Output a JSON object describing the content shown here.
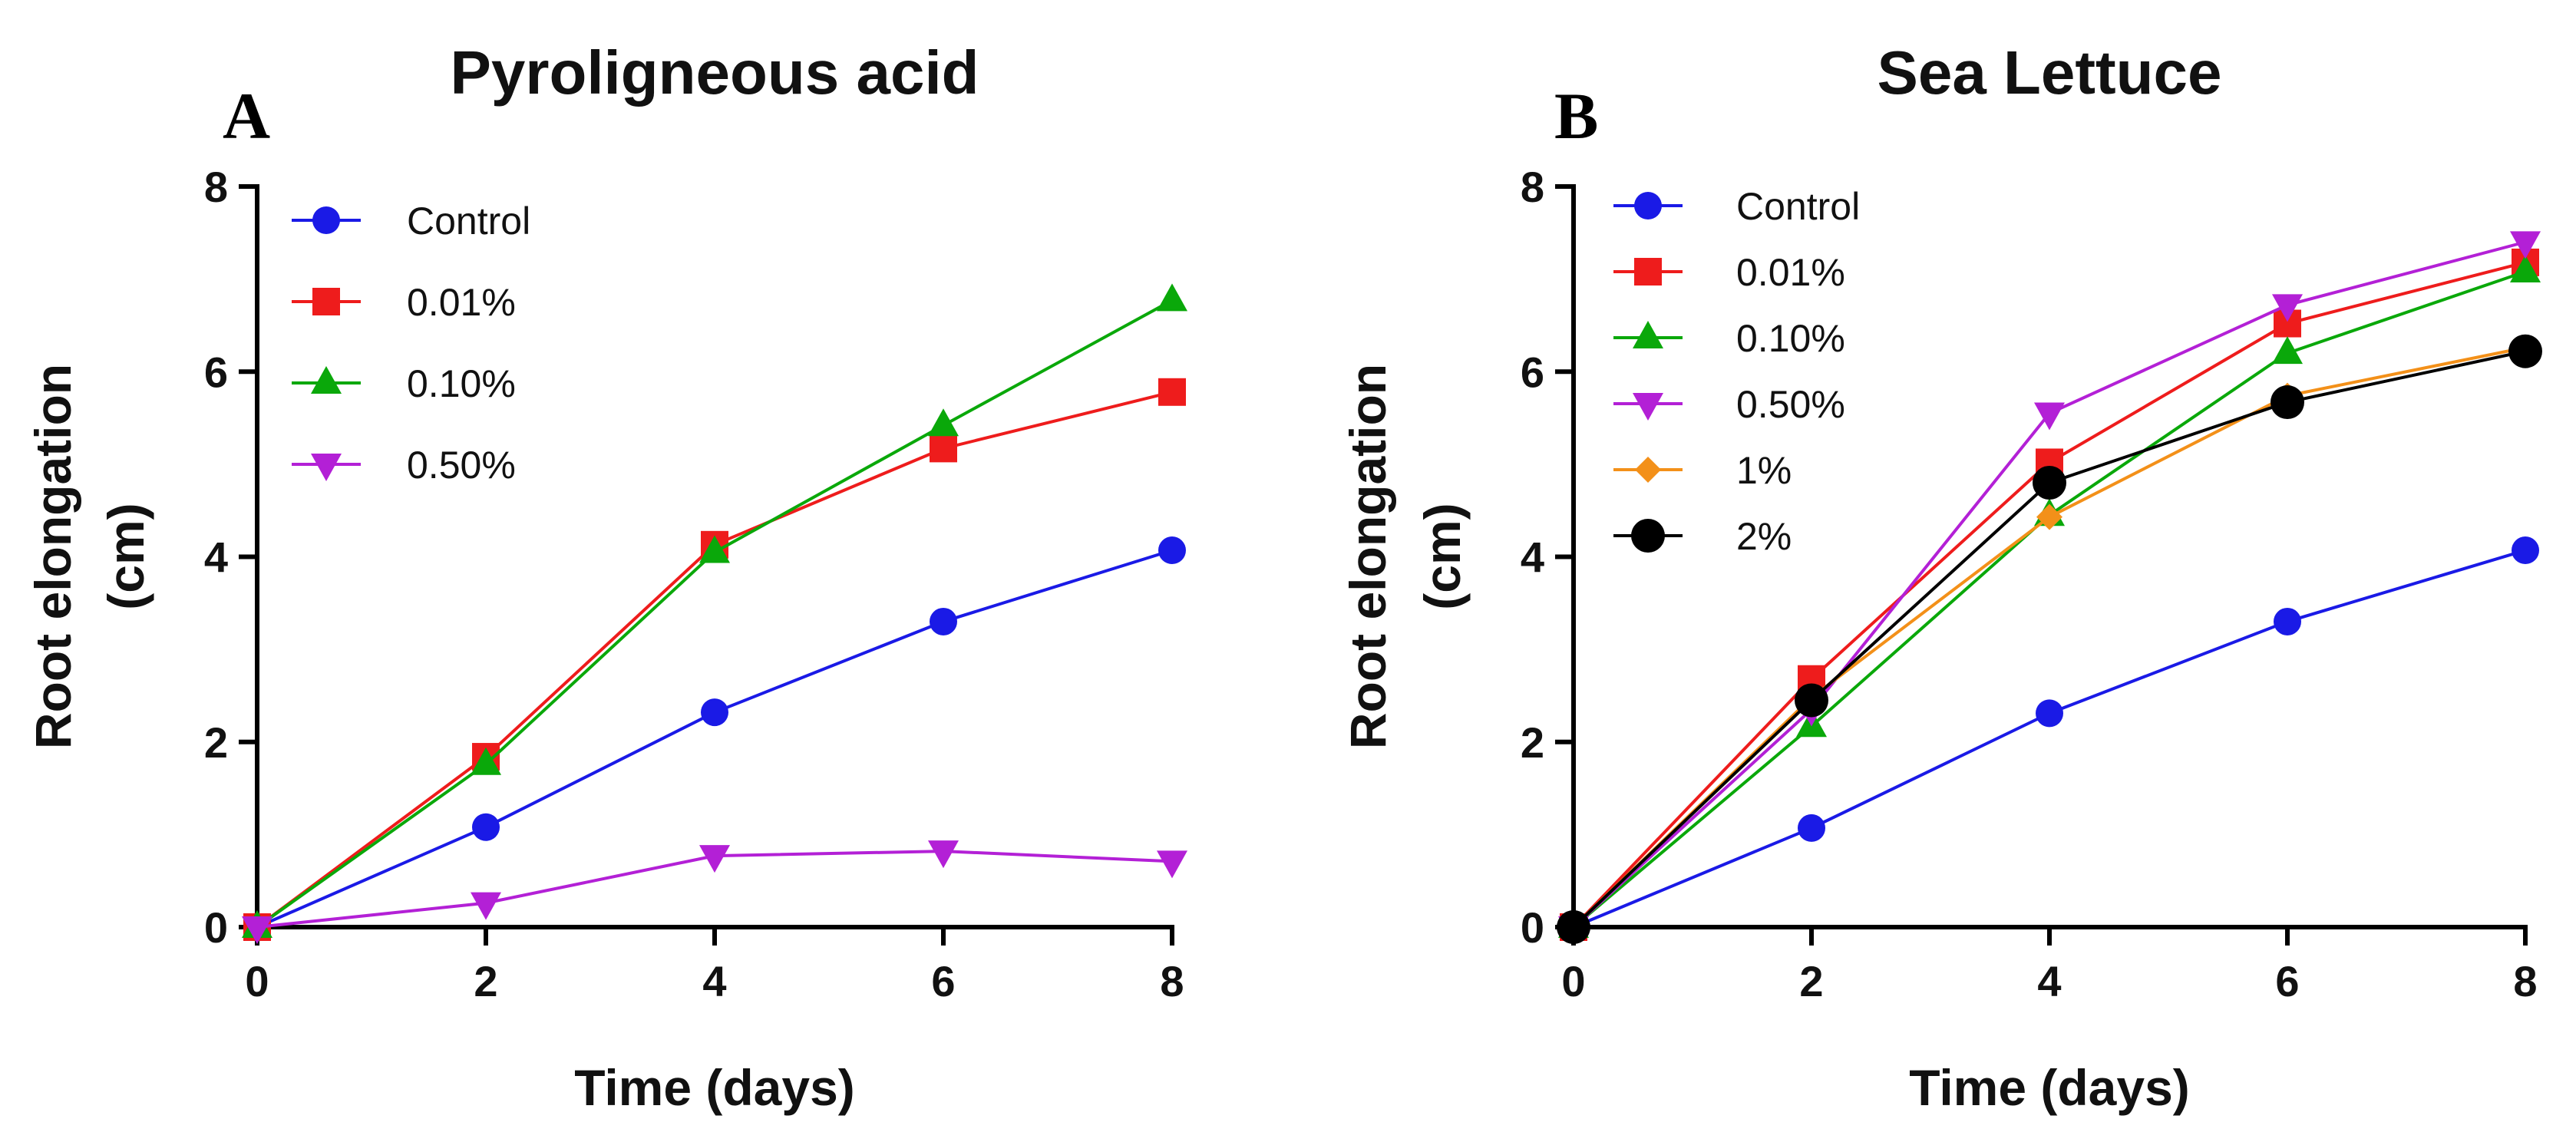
{
  "chart_data": [
    {
      "type": "line",
      "panel_letter": "A",
      "title": "Pyroligneous acid",
      "xlabel": "Time (days)",
      "ylabel_lines": [
        "Root elongation",
        "(cm)"
      ],
      "xlim": [
        0,
        8
      ],
      "ylim": [
        0,
        8
      ],
      "xticks": [
        "0",
        "2",
        "4",
        "6",
        "8"
      ],
      "yticks": [
        "0",
        "2",
        "4",
        "6",
        "8"
      ],
      "grid": false,
      "legend_position": "top-left",
      "x": [
        0,
        2,
        4,
        6,
        8
      ],
      "series": [
        {
          "name": "Control",
          "values": [
            0,
            1.08,
            2.32,
            3.3,
            4.07
          ],
          "color": "#1a1ae6",
          "marker": "circle"
        },
        {
          "name": "0.01%",
          "values": [
            0,
            1.84,
            4.13,
            5.17,
            5.78
          ],
          "color": "#ee1c1c",
          "marker": "square"
        },
        {
          "name": "0.10%",
          "values": [
            0,
            1.76,
            4.05,
            5.42,
            6.77
          ],
          "color": "#0aa80a",
          "marker": "triangle-up"
        },
        {
          "name": "0.50%",
          "values": [
            0,
            0.26,
            0.77,
            0.82,
            0.71
          ],
          "color": "#b320d6",
          "marker": "triangle-down"
        }
      ]
    },
    {
      "type": "line",
      "panel_letter": "B",
      "title": "Sea Lettuce",
      "xlabel": "Time (days)",
      "ylabel_lines": [
        "Root elongation",
        "(cm)"
      ],
      "xlim": [
        0,
        8
      ],
      "ylim": [
        0,
        8
      ],
      "xticks": [
        "0",
        "2",
        "4",
        "6",
        "8"
      ],
      "yticks": [
        "0",
        "2",
        "4",
        "6",
        "8"
      ],
      "grid": false,
      "legend_position": "top-left",
      "x": [
        0,
        2,
        4,
        6,
        8
      ],
      "series": [
        {
          "name": "Control",
          "values": [
            0,
            1.07,
            2.31,
            3.3,
            4.07
          ],
          "color": "#1a1ae6",
          "marker": "circle"
        },
        {
          "name": "0.01%",
          "values": [
            0,
            2.68,
            5.02,
            6.52,
            7.18
          ],
          "color": "#ee1c1c",
          "marker": "square"
        },
        {
          "name": "0.10%",
          "values": [
            0,
            2.17,
            4.45,
            6.2,
            7.08
          ],
          "color": "#0aa80a",
          "marker": "triangle-up"
        },
        {
          "name": "0.50%",
          "values": [
            0,
            2.35,
            5.55,
            6.72,
            7.4
          ],
          "color": "#b320d6",
          "marker": "triangle-down"
        },
        {
          "name": "1%",
          "values": [
            0,
            2.48,
            4.43,
            5.74,
            6.26
          ],
          "color": "#f39019",
          "marker": "diamond"
        },
        {
          "name": "2%",
          "values": [
            0,
            2.45,
            4.8,
            5.67,
            6.22
          ],
          "color": "#000000",
          "marker": "circle-large"
        }
      ]
    }
  ]
}
